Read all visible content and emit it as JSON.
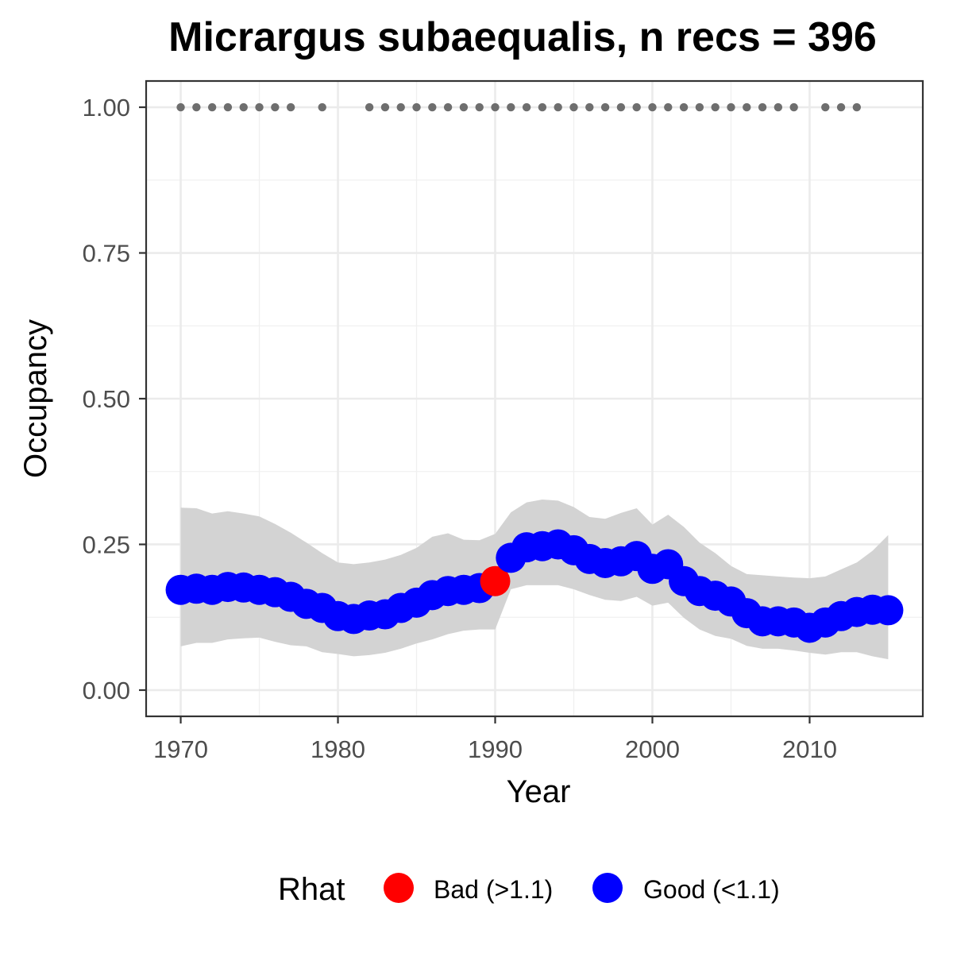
{
  "chart_data": {
    "type": "scatter",
    "title": "Micrargus subaequalis, n recs = 396",
    "xlabel": "Year",
    "ylabel": "Occupancy",
    "xlim": [
      1967.8,
      2017.2
    ],
    "ylim": [
      -0.045,
      1.045
    ],
    "x_ticks": [
      1970,
      1980,
      1990,
      2000,
      2010
    ],
    "x_tick_labels": [
      "1970",
      "1980",
      "1990",
      "2000",
      "2010"
    ],
    "y_ticks": [
      0,
      0.25,
      0.5,
      0.75,
      1
    ],
    "y_tick_labels": [
      "0.00",
      "0.25",
      "0.50",
      "0.75",
      "1.00"
    ],
    "grid": true,
    "legend_position": "bottom",
    "legend_title": "Rhat",
    "legend": [
      {
        "label": "Bad (>1.1)",
        "color": "#ff0000"
      },
      {
        "label": "Good (<1.1)",
        "color": "#0000ff"
      }
    ],
    "ribbon_color": "#d3d3d3",
    "record_dot_color": "#6e6e6e",
    "series": [
      {
        "name": "Occupancy",
        "x": [
          1970,
          1971,
          1972,
          1973,
          1974,
          1975,
          1976,
          1977,
          1978,
          1979,
          1980,
          1981,
          1982,
          1983,
          1984,
          1985,
          1986,
          1987,
          1988,
          1989,
          1990,
          1991,
          1992,
          1993,
          1994,
          1995,
          1996,
          1997,
          1998,
          1999,
          2000,
          2001,
          2002,
          2003,
          2004,
          2005,
          2006,
          2007,
          2008,
          2009,
          2010,
          2011,
          2012,
          2013,
          2014,
          2015
        ],
        "y": [
          0.172,
          0.174,
          0.172,
          0.177,
          0.176,
          0.172,
          0.168,
          0.16,
          0.148,
          0.141,
          0.127,
          0.122,
          0.128,
          0.13,
          0.141,
          0.15,
          0.163,
          0.17,
          0.172,
          0.175,
          0.187,
          0.227,
          0.245,
          0.247,
          0.25,
          0.24,
          0.225,
          0.218,
          0.221,
          0.23,
          0.208,
          0.216,
          0.187,
          0.17,
          0.162,
          0.152,
          0.132,
          0.118,
          0.118,
          0.116,
          0.107,
          0.116,
          0.127,
          0.134,
          0.138,
          0.137
        ],
        "rhat": [
          "Good",
          "Good",
          "Good",
          "Good",
          "Good",
          "Good",
          "Good",
          "Good",
          "Good",
          "Good",
          "Good",
          "Good",
          "Good",
          "Good",
          "Good",
          "Good",
          "Good",
          "Good",
          "Good",
          "Good",
          "Bad",
          "Good",
          "Good",
          "Good",
          "Good",
          "Good",
          "Good",
          "Good",
          "Good",
          "Good",
          "Good",
          "Good",
          "Good",
          "Good",
          "Good",
          "Good",
          "Good",
          "Good",
          "Good",
          "Good",
          "Good",
          "Good",
          "Good",
          "Good",
          "Good",
          "Good"
        ],
        "lower": [
          0.075,
          0.081,
          0.081,
          0.087,
          0.089,
          0.09,
          0.083,
          0.077,
          0.075,
          0.065,
          0.062,
          0.058,
          0.06,
          0.064,
          0.071,
          0.08,
          0.087,
          0.096,
          0.102,
          0.104,
          0.104,
          0.173,
          0.18,
          0.18,
          0.18,
          0.173,
          0.163,
          0.155,
          0.153,
          0.16,
          0.145,
          0.15,
          0.124,
          0.104,
          0.093,
          0.088,
          0.076,
          0.071,
          0.071,
          0.068,
          0.064,
          0.061,
          0.065,
          0.065,
          0.058,
          0.053
        ],
        "upper": [
          0.313,
          0.312,
          0.303,
          0.307,
          0.303,
          0.298,
          0.285,
          0.27,
          0.253,
          0.235,
          0.219,
          0.216,
          0.219,
          0.224,
          0.232,
          0.244,
          0.263,
          0.269,
          0.258,
          0.257,
          0.268,
          0.305,
          0.322,
          0.327,
          0.325,
          0.314,
          0.297,
          0.294,
          0.304,
          0.312,
          0.284,
          0.301,
          0.28,
          0.253,
          0.235,
          0.213,
          0.199,
          0.197,
          0.195,
          0.193,
          0.192,
          0.195,
          0.207,
          0.219,
          0.239,
          0.266
        ]
      }
    ],
    "record_years": [
      1970,
      1971,
      1972,
      1973,
      1974,
      1975,
      1976,
      1977,
      1979,
      1982,
      1983,
      1984,
      1985,
      1986,
      1987,
      1988,
      1989,
      1990,
      1991,
      1992,
      1993,
      1994,
      1995,
      1996,
      1997,
      1998,
      1999,
      2000,
      2001,
      2002,
      2003,
      2004,
      2005,
      2006,
      2007,
      2008,
      2009,
      2011,
      2012,
      2013
    ],
    "record_value": 1
  }
}
